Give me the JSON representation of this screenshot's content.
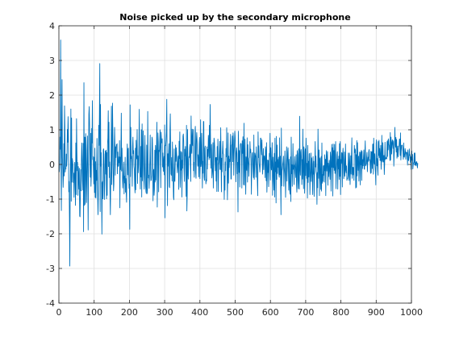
{
  "figure": {
    "background": "#ffffff",
    "axes_color": "#262626",
    "grid_color": "#dfdfdf"
  },
  "chart_data": {
    "type": "line",
    "title": "Noise picked up by the secondary microphone",
    "xlabel": "",
    "ylabel": "",
    "xlim": [
      0,
      1000
    ],
    "ylim": [
      -4,
      4
    ],
    "xticks": [
      0,
      100,
      200,
      300,
      400,
      500,
      600,
      700,
      800,
      900,
      1000
    ],
    "yticks": [
      -4,
      -3,
      -2,
      -1,
      0,
      1,
      2,
      3,
      4
    ],
    "grid": true,
    "series": [
      {
        "color": "#0072bd",
        "x_start": 1,
        "x_step": 1,
        "count": 1000,
        "values": [
          -0.22,
          -0.07,
          0.79,
          0.44,
          3.59,
          0.02,
          -1.33,
          1.09,
          2.45,
          0.21,
          -0.15,
          -0.66,
          -0.3,
          0.6,
          -0.33,
          1.69,
          1.05,
          -0.22,
          -0.11,
          -0.13,
          0.3,
          -0.05,
          0.18,
          1.01,
          0.64,
          1.38,
          0.81,
          -0.79,
          -0.49,
          -1.54,
          -2.93,
          -0.66,
          0.15,
          1.6,
          -1.06,
          1.34,
          -0.51,
          0.17,
          0.09,
          -0.04,
          -0.52,
          -0.25,
          -0.95,
          -0.41,
          0.06,
          -0.31,
          -1.18,
          0.62,
          -0.87,
          1.32,
          0.4,
          -0.18,
          0.06,
          -0.89,
          -0.06,
          -0.33,
          -0.71,
          -0.11,
          -1.49,
          -1.51,
          -0.77,
          -0.15,
          -0.76,
          0.16,
          0.62,
          0.13,
          -0.47,
          -0.74,
          0.61,
          -1.94,
          2.36,
          -1.18,
          0.79,
          0.78,
          -1.15,
          0.89,
          0.08,
          -1.1,
          -0.51,
          0.4,
          0.82,
          -0.44,
          -1.89,
          0.21,
          1.45,
          1.67,
          1.11,
          0.06,
          -0.37,
          0.9,
          -0.63,
          -0.3,
          1.04,
          0.62,
          1.84,
          0.14,
          0.23,
          -0.15,
          -0.56,
          0.21,
          -0.81,
          0.47,
          -0.95,
          0.08,
          -0.97,
          -0.17,
          -0.46,
          0.75,
          -0.35,
          -0.93,
          -1.45,
          -0.87,
          1.13,
          0.55,
          1.46,
          2.91,
          -1.36,
          1.73,
          -0.05,
          0.34,
          -0.7,
          -2.01,
          -0.53,
          -0.49,
          -0.99,
          0.42,
          0.45,
          -0.27,
          -1.01,
          -0.56,
          0.29,
          0.39,
          -0.28,
          0.41,
          -0.99,
          0.34,
          -0.89,
          0.58,
          0.76,
          1.55,
          -0.06,
          1.22,
          -0.38,
          0.07,
          -0.87,
          -1.45,
          -0.51,
          -0.16,
          1.68,
          -0.58,
          0.09,
          1.77,
          0.94,
          -0.08,
          -0.76,
          -0.57,
          0.36,
          1.07,
          0.48,
          -0.31,
          0.51,
          0.2,
          0.57,
          0.55,
          0.6,
          -0.27,
          0.36,
          -0.05,
          -0.05,
          0.22,
          0.05,
          0.69,
          -1.25,
          0.21,
          -0.15,
          0.41,
          1.48,
          -0.19,
          0.47,
          -0.1,
          -0.68,
          -0.48,
          -0.27,
          0.07,
          -0.85,
          -0.34,
          -0.53,
          0.21,
          -0.8,
          -0.41,
          -0.83,
          -1.09,
          0.1,
          0.59,
          -0.3,
          0.44,
          0.47,
          -0.28,
          -0.69,
          -0.57,
          -1.87,
          1.72,
          -0.35,
          1.07,
          0.17,
          0.24,
          0.03,
          -0.63,
          0.52,
          0.79,
          0.31,
          0.4,
          -0.05,
          -0.15,
          -0.59,
          -0.82,
          0.47,
          -0.73,
          0.7,
          0.16,
          0.2,
          1.01,
          -0.55,
          0.25,
          -0.24,
          0.04,
          0.52,
          1.59,
          -0.06,
          -0.29,
          -0.71,
          0.52,
          -0.36,
          1.0,
          -0.94,
          1.17,
          -0.47,
          -0.05,
          0.97,
          0.43,
          -0.47,
          -0.71,
          -0.23,
          0.84,
          -0.01,
          -0.62,
          -0.79,
          -0.84,
          0.56,
          -0.65,
          -0.84,
          1.53,
          0.12,
          -0.39,
          -0.31,
          -0.69,
          -0.27,
          0.16,
          0.85,
          -0.15,
          -0.47,
          -0.45,
          -0.32,
          0.79,
          0.74,
          0.31,
          -1.05,
          -0.22,
          -0.14,
          -0.89,
          -0.72,
          0.41,
          -0.51,
          0.55,
          -0.45,
          0.31,
          0.55,
          1.22,
          -1.23,
          -0.18,
          0.91,
          0.65,
          -0.79,
          0.41,
          0.37,
          0.62,
          1.0,
          0.24,
          -0.67,
          0.93,
          0.75,
          0.62,
          0.74,
          -0.07,
          0.33,
          -0.2,
          0.08,
          0.23,
          -0.3,
          1.14,
          -1.54,
          0.55,
          0.54,
          0.69,
          0.96,
          1.88,
          0.09,
          -1.19,
          0.31,
          -0.05,
          0.34,
          0.6,
          -0.63,
          -0.67,
          0.99,
          1.46,
          0.37,
          -0.27,
          -0.31,
          0.2,
          -0.48,
          0.65,
          0.07,
          -0.34,
          -0.95,
          -1.02,
          0.45,
          -0.45,
          -0.49,
          -0.03,
          0.56,
          0.09,
          0.48,
          0.28,
          -0.02,
          -0.24,
          -0.07,
          0.21,
          0.25,
          -0.72,
          0.67,
          0.17,
          0.94,
          -0.66,
          -0.39,
          0.38,
          -0.16,
          0.35,
          -0.94,
          0.12,
          -0.11,
          0.82,
          0.88,
          0.66,
          -0.15,
          -0.49,
          0.44,
          0.25,
          0.52,
          -0.17,
          -0.92,
          1.13,
          -1.34,
          -0.83,
          1.01,
          -0.22,
          -0.42,
          0.15,
          0.23,
          0.2,
          0.48,
          0.58,
          -0.02,
          -0.49,
          1.4,
          0.47,
          0.32,
          1.02,
          0.63,
          0.54,
          1.01,
          -0.18,
          0.06,
          -0.37,
          0.23,
          0.96,
          1.1,
          -0.25,
          -0.4,
          0.71,
          0.92,
          0.68,
          0.33,
          -0.05,
          0.28,
          0.13,
          -0.36,
          0.6,
          0.78,
          -0.41,
          -0.03,
          1.29,
          -0.06,
          0.03,
          0.9,
          0.3,
          -0.68,
          0.09,
          -0.25,
          1.24,
          1.24,
          -0.36,
          -0.46,
          0.46,
          0.53,
          -0.24,
          -0.56,
          -0.43,
          -0.48,
          0.51,
          -0.13,
          0.43,
          0.23,
          0.84,
          0.65,
          0.14,
          1.13,
          0.19,
          1.73,
          0.81,
          -0.11,
          0.32,
          0.58,
          -0.39,
          -0.27,
          -0.11,
          0.63,
          -0.68,
          -0.04,
          0.76,
          0.67,
          0.47,
          0.1,
          -0.18,
          0.2,
          -0.48,
          0.2,
          -0.78,
          0.52,
          0.13,
          0.73,
          -0.78,
          -0.01,
          0.06,
          0.31,
          0.67,
          -0.14,
          -0.15,
          1.06,
          0.15,
          -0.79,
          0.18,
          -0.21,
          0.35,
          0.67,
          0.32,
          0.29,
          -0.01,
          -1.01,
          -0.33,
          -0.74,
          0.07,
          -0.18,
          0.46,
          0.22,
          1.06,
          -0.06,
          -1.02,
          -0.34,
          0.91,
          -0.54,
          0.24,
          -0.09,
          0.15,
          0.08,
          0.59,
          0.87,
          -0.42,
          -0.42,
          0.56,
          0.57,
          0.82,
          0.08,
          0.91,
          0.7,
          -0.31,
          0.33,
          0.62,
          0.96,
          0.79,
          0.35,
          -0.5,
          0.31,
          0.48,
          0.32,
          -0.27,
          0.06,
          -1.37,
          0.96,
          0.51,
          -0.23,
          0.4,
          -0.65,
          0.23,
          0.58,
          0.61,
          0.59,
          0.27,
          -0.68,
          0.68,
          0.32,
          0.8,
          0.34,
          -0.58,
          1.19,
          -0.6,
          0.05,
          0.73,
          -0.23,
          -0.86,
          0.22,
          0.04,
          -0.17,
          0.77,
          -0.51,
          0.57,
          0.14,
          -0.03,
          -0.34,
          0.17,
          0.21,
          0.66,
          0.34,
          0.44,
          0.04,
          -0.86,
          -0.06,
          0.31,
          0.35,
          0.04,
          -0.21,
          -0.38,
          0.85,
          -0.43,
          -0.15,
          0.33,
          0.27,
          0.21,
          -0.37,
          0.51,
          0.11,
          -0.1,
          -0.53,
          -0.9,
          0.94,
          0.2,
          0.54,
          0.05,
          -0.07,
          -0.22,
          -0.02,
          0.76,
          0.76,
          0.46,
          0.28,
          0.71,
          -0.02,
          -0.28,
          0.22,
          0.46,
          -0.15,
          0.2,
          0.25,
          0.14,
          -0.38,
          0.51,
          0.37,
          -0.47,
          0.63,
          -0.8,
          -0.4,
          0.13,
          -0.23,
          0.12,
          -0.64,
          -0.24,
          0.32,
          0.23,
          0.9,
          -0.45,
          0.48,
          -0.05,
          -0.16,
          0.16,
          0.63,
          -0.89,
          -0.13,
          0.21,
          -0.46,
          -0.74,
          0.32,
          -0.94,
          0.76,
          -0.21,
          0.07,
          -1.11,
          0.81,
          -0.43,
          0.56,
          -0.26,
          0.14,
          -0.08,
          0.21,
          -0.29,
          -0.37,
          0.77,
          -0.3,
          0.24,
          -0.59,
          -1.45,
          1.05,
          -0.62,
          -0.18,
          -0.13,
          0.01,
          0.09,
          0.24,
          -0.63,
          -0.28,
          -0.09,
          0.39,
          -0.23,
          -0.95,
          -0.34,
          0.02,
          0.51,
          -0.48,
          -0.06,
          0.35,
          0.48,
          -0.04,
          -0.74,
          0.15,
          -0.42,
          -0.77,
          -0.86,
          0.22,
          -1.07,
          0.79,
          -0.27,
          -0.01,
          -0.63,
          -0.12,
          0.6,
          -0.14,
          -0.02,
          -0.58,
          -0.11,
          0.23,
          0.01,
          -0.26,
          -0.38,
          0.28,
          -0.59,
          -0.8,
          0.4,
          0.3,
          -0.45,
          -0.7,
          0.45,
          -0.31,
          -0.71,
          1.39,
          -0.11,
          -0.31,
          0.36,
          0.43,
          0.16,
          -0.58,
          0.14,
          -0.42,
          1.02,
          -0.03,
          -0.7,
          0.51,
          0.36,
          -0.83,
          -0.3,
          0.45,
          -0.32,
          0.76,
          0.36,
          -0.4,
          0.03,
          -0.97,
          0.55,
          -0.52,
          0.09,
          -0.36,
          0.3,
          0.32,
          -0.87,
          -0.42,
          -0.11,
          0.33,
          -0.49,
          0.19,
          0.03,
          -0.51,
          -0.87,
          0.23,
          -0.28,
          0.09,
          -0.92,
          -0.34,
          -0.09,
          0.66,
          -0.07,
          0.24,
          -0.2,
          -0.29,
          -1.15,
          -0.23,
          -0.67,
          1.02,
          0.13,
          -0.4,
          0.42,
          -0.9,
          0.14,
          0.19,
          -0.43,
          -0.72,
          0.23,
          -0.77,
          0.62,
          -0.54,
          -0.29,
          -0.49,
          -0.04,
          -0.31,
          -0.03,
          -0.51,
          0.28,
          -0.18,
          0.15,
          -0.9,
          0.14,
          0.4,
          -0.19,
          0.14,
          0.37,
          -0.6,
          0.04,
          -0.35,
          -0.16,
          0.12,
          -0.22,
          -0.43,
          0.36,
          0.22,
          -0.77,
          -0.11,
          0.58,
          -0.08,
          0.48,
          -0.91,
          0.59,
          -0.09,
          0.4,
          -0.17,
          0.58,
          -0.26,
          -0.02,
          0.66,
          -0.7,
          -0.21,
          -0.04,
          0.28,
          0.37,
          -0.71,
          0.15,
          -0.13,
          0.24,
          -0.43,
          0.6,
          -0.34,
          0.66,
          -0.87,
          0.14,
          0.03,
          0.34,
          0.33,
          -0.65,
          0.28,
          0.47,
          0.11,
          -0.41,
          -0.15,
          0.36,
          -0.34,
          -0.15,
          0.59,
          -0.16,
          -0.24,
          -0.04,
          -0.46,
          -0.41,
          -0.41,
          -0.32,
          0.33,
          -0.19,
          -0.46,
          0.33,
          0.1,
          -0.58,
          -0.16,
          0.25,
          -0.28,
          0.31,
          0.77,
          -0.4,
          -0.17,
          -0.08,
          -0.3,
          -0.09,
          -0.46,
          0.55,
          0.34,
          0.45,
          0.42,
          -0.68,
          0.28,
          -0.66,
          0.69,
          -0.33,
          0.63,
          0.09,
          -0.17,
          0.24,
          -0.48,
          -0.1,
          0.36,
          0.27,
          -0.59,
          0.36,
          -0.01,
          0.41,
          -0.46,
          0.38,
          -0.12,
          0.14,
          -0.04,
          0.22,
          0.42,
          -0.13,
          -0.14,
          0.39,
          0.68,
          -0.04,
          -0.01,
          0.02,
          0.22,
          0.35,
          -0.21,
          0.04,
          0.21,
          0.09,
          0.38,
          0.43,
          0.12,
          0.14,
          0.01,
          -0.26,
          0.38,
          -0.24,
          0.36,
          0.37,
          -0.12,
          0.58,
          0.59,
          -0.28,
          0.76,
          0.07,
          0.01,
          0.31,
          -0.07,
          -0.23,
          -0.59,
          0.61,
          0.71,
          -0.04,
          0.17,
          -0.12,
          -0.31,
          0.66,
          0.26,
          0.7,
          0.2,
          0.46,
          0.11,
          0.12,
          0.55,
          -0.14,
          0.14,
          0.84,
          0.12,
          0.07,
          0.63,
          0.16,
          0.07,
          0.26,
          -0.29,
          0.01,
          0.64,
          0.14,
          0.21,
          0.17,
          0.18,
          0.16,
          0.66,
          0.23,
          0.7,
          0.42,
          0.74,
          0.58,
          0.55,
          0.38,
          0.11,
          0.92,
          0.13,
          0.79,
          0.59,
          0.3,
          0.64,
          0.71,
          0.58,
          0.46,
          0.68,
          -0.05,
          0.28,
          0.44,
          1.07,
          0.61,
          0.5,
          0.78,
          0.36,
          0.72,
          0.18,
          0.31,
          0.53,
          0.22,
          0.38,
          0.53,
          0.53,
          0.73,
          0.73,
          0.26,
          0.91,
          0.13,
          0.37,
          0.55,
          0.55,
          0.56,
          0.47,
          0.36,
          0.15,
          0.62,
          0.22,
          0.21,
          0.31,
          0.46,
          0.38,
          0.15,
          0.32,
          0.36,
          0.35,
          0.26,
          -0.02,
          0.42,
          0.16,
          0.11,
          0.21,
          0.45,
          0.26,
          0.28,
          0.06,
          0.22,
          -0.14,
          0.24,
          0.39,
          0.12,
          0.29,
          -0.13,
          -0.01,
          0.04,
          0.07,
          0.33,
          -0.02,
          0.33,
          -0.01,
          0.05,
          -0.04,
          0.08,
          0.08,
          0.01,
          -0.1,
          0.04
        ]
      }
    ]
  }
}
